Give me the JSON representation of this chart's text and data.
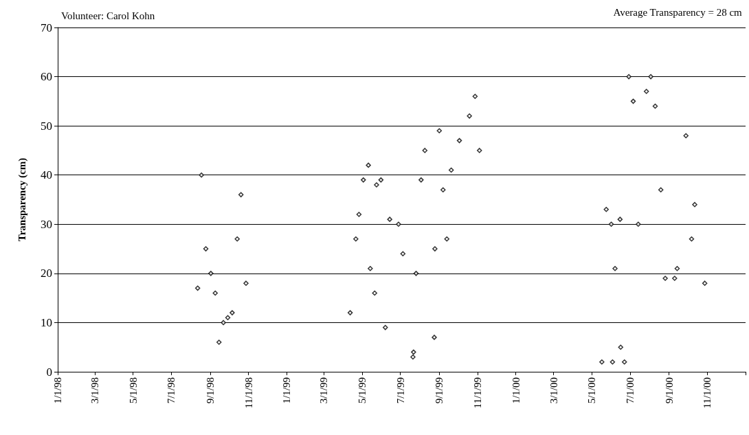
{
  "chart_data": {
    "type": "scatter",
    "title": "Volunteer: Carol Kohn",
    "annotations": [
      "Average Transparency = 28 cm"
    ],
    "ylabel": "Transparency (cm)",
    "x": [
      "1998-08-12",
      "1998-08-18",
      "1998-08-25",
      "1998-09-02",
      "1998-09-09",
      "1998-09-15",
      "1998-09-22",
      "1998-09-29",
      "1998-10-06",
      "1998-10-14",
      "1998-10-20",
      "1998-10-28",
      "1999-04-12",
      "1999-04-21",
      "1999-04-26",
      "1999-05-03",
      "1999-05-11",
      "1999-05-14",
      "1999-05-21",
      "1999-05-24",
      "1999-05-31",
      "1999-06-07",
      "1999-06-14",
      "1999-06-28",
      "1999-07-05",
      "1999-07-21",
      "1999-07-22",
      "1999-07-26",
      "1999-08-03",
      "1999-08-09",
      "1999-08-24",
      "1999-08-25",
      "1999-09-01",
      "1999-09-07",
      "1999-09-13",
      "1999-09-20",
      "1999-10-03",
      "1999-10-19",
      "1999-10-28",
      "1999-11-04",
      "2000-05-17",
      "2000-05-24",
      "2000-06-01",
      "2000-06-03",
      "2000-06-07",
      "2000-06-15",
      "2000-06-16",
      "2000-06-22",
      "2000-06-29",
      "2000-07-06",
      "2000-07-14",
      "2000-07-27",
      "2000-08-03",
      "2000-08-10",
      "2000-08-19",
      "2000-08-26",
      "2000-09-10",
      "2000-09-14",
      "2000-09-28",
      "2000-10-07",
      "2000-10-12",
      "2000-10-28"
    ],
    "series": [
      {
        "color": "#000000",
        "values": [
          17,
          40,
          25,
          20,
          16,
          6,
          10,
          11,
          12,
          27,
          36,
          18,
          12,
          27,
          32,
          39,
          42,
          21,
          16,
          38,
          39,
          9,
          31,
          30,
          24,
          3,
          4,
          20,
          39,
          45,
          7,
          25,
          49,
          37,
          27,
          41,
          47,
          52,
          56,
          45,
          2,
          33,
          30,
          2,
          21,
          31,
          5,
          2,
          60,
          55,
          30,
          57,
          60,
          54,
          37,
          19,
          19,
          21,
          48,
          27,
          34,
          18
        ]
      }
    ],
    "marker": "diamond",
    "grid": "y",
    "xlim": [
      "1998-01-01",
      "2001-01-01"
    ],
    "xticks": [
      {
        "value": "1998-01-01",
        "label": "1/1/98"
      },
      {
        "value": "1998-03-01",
        "label": "3/1/98"
      },
      {
        "value": "1998-05-01",
        "label": "5/1/98"
      },
      {
        "value": "1998-07-01",
        "label": "7/1/98"
      },
      {
        "value": "1998-09-01",
        "label": "9/1/98"
      },
      {
        "value": "1998-11-01",
        "label": "11/1/98"
      },
      {
        "value": "1999-01-01",
        "label": "1/1/99"
      },
      {
        "value": "1999-03-01",
        "label": "3/1/99"
      },
      {
        "value": "1999-05-01",
        "label": "5/1/99"
      },
      {
        "value": "1999-07-01",
        "label": "7/1/99"
      },
      {
        "value": "1999-09-01",
        "label": "9/1/99"
      },
      {
        "value": "1999-11-01",
        "label": "11/1/99"
      },
      {
        "value": "2000-01-01",
        "label": "1/1/00"
      },
      {
        "value": "2000-03-01",
        "label": "3/1/00"
      },
      {
        "value": "2000-05-01",
        "label": "5/1/00"
      },
      {
        "value": "2000-07-01",
        "label": "7/1/00"
      },
      {
        "value": "2000-09-01",
        "label": "9/1/00"
      },
      {
        "value": "2000-11-01",
        "label": "11/1/00"
      },
      {
        "value": "2001-01-01",
        "label": null
      }
    ],
    "ylim": [
      0,
      70
    ],
    "yticks": [
      0,
      10,
      20,
      30,
      40,
      50,
      60,
      70
    ]
  }
}
